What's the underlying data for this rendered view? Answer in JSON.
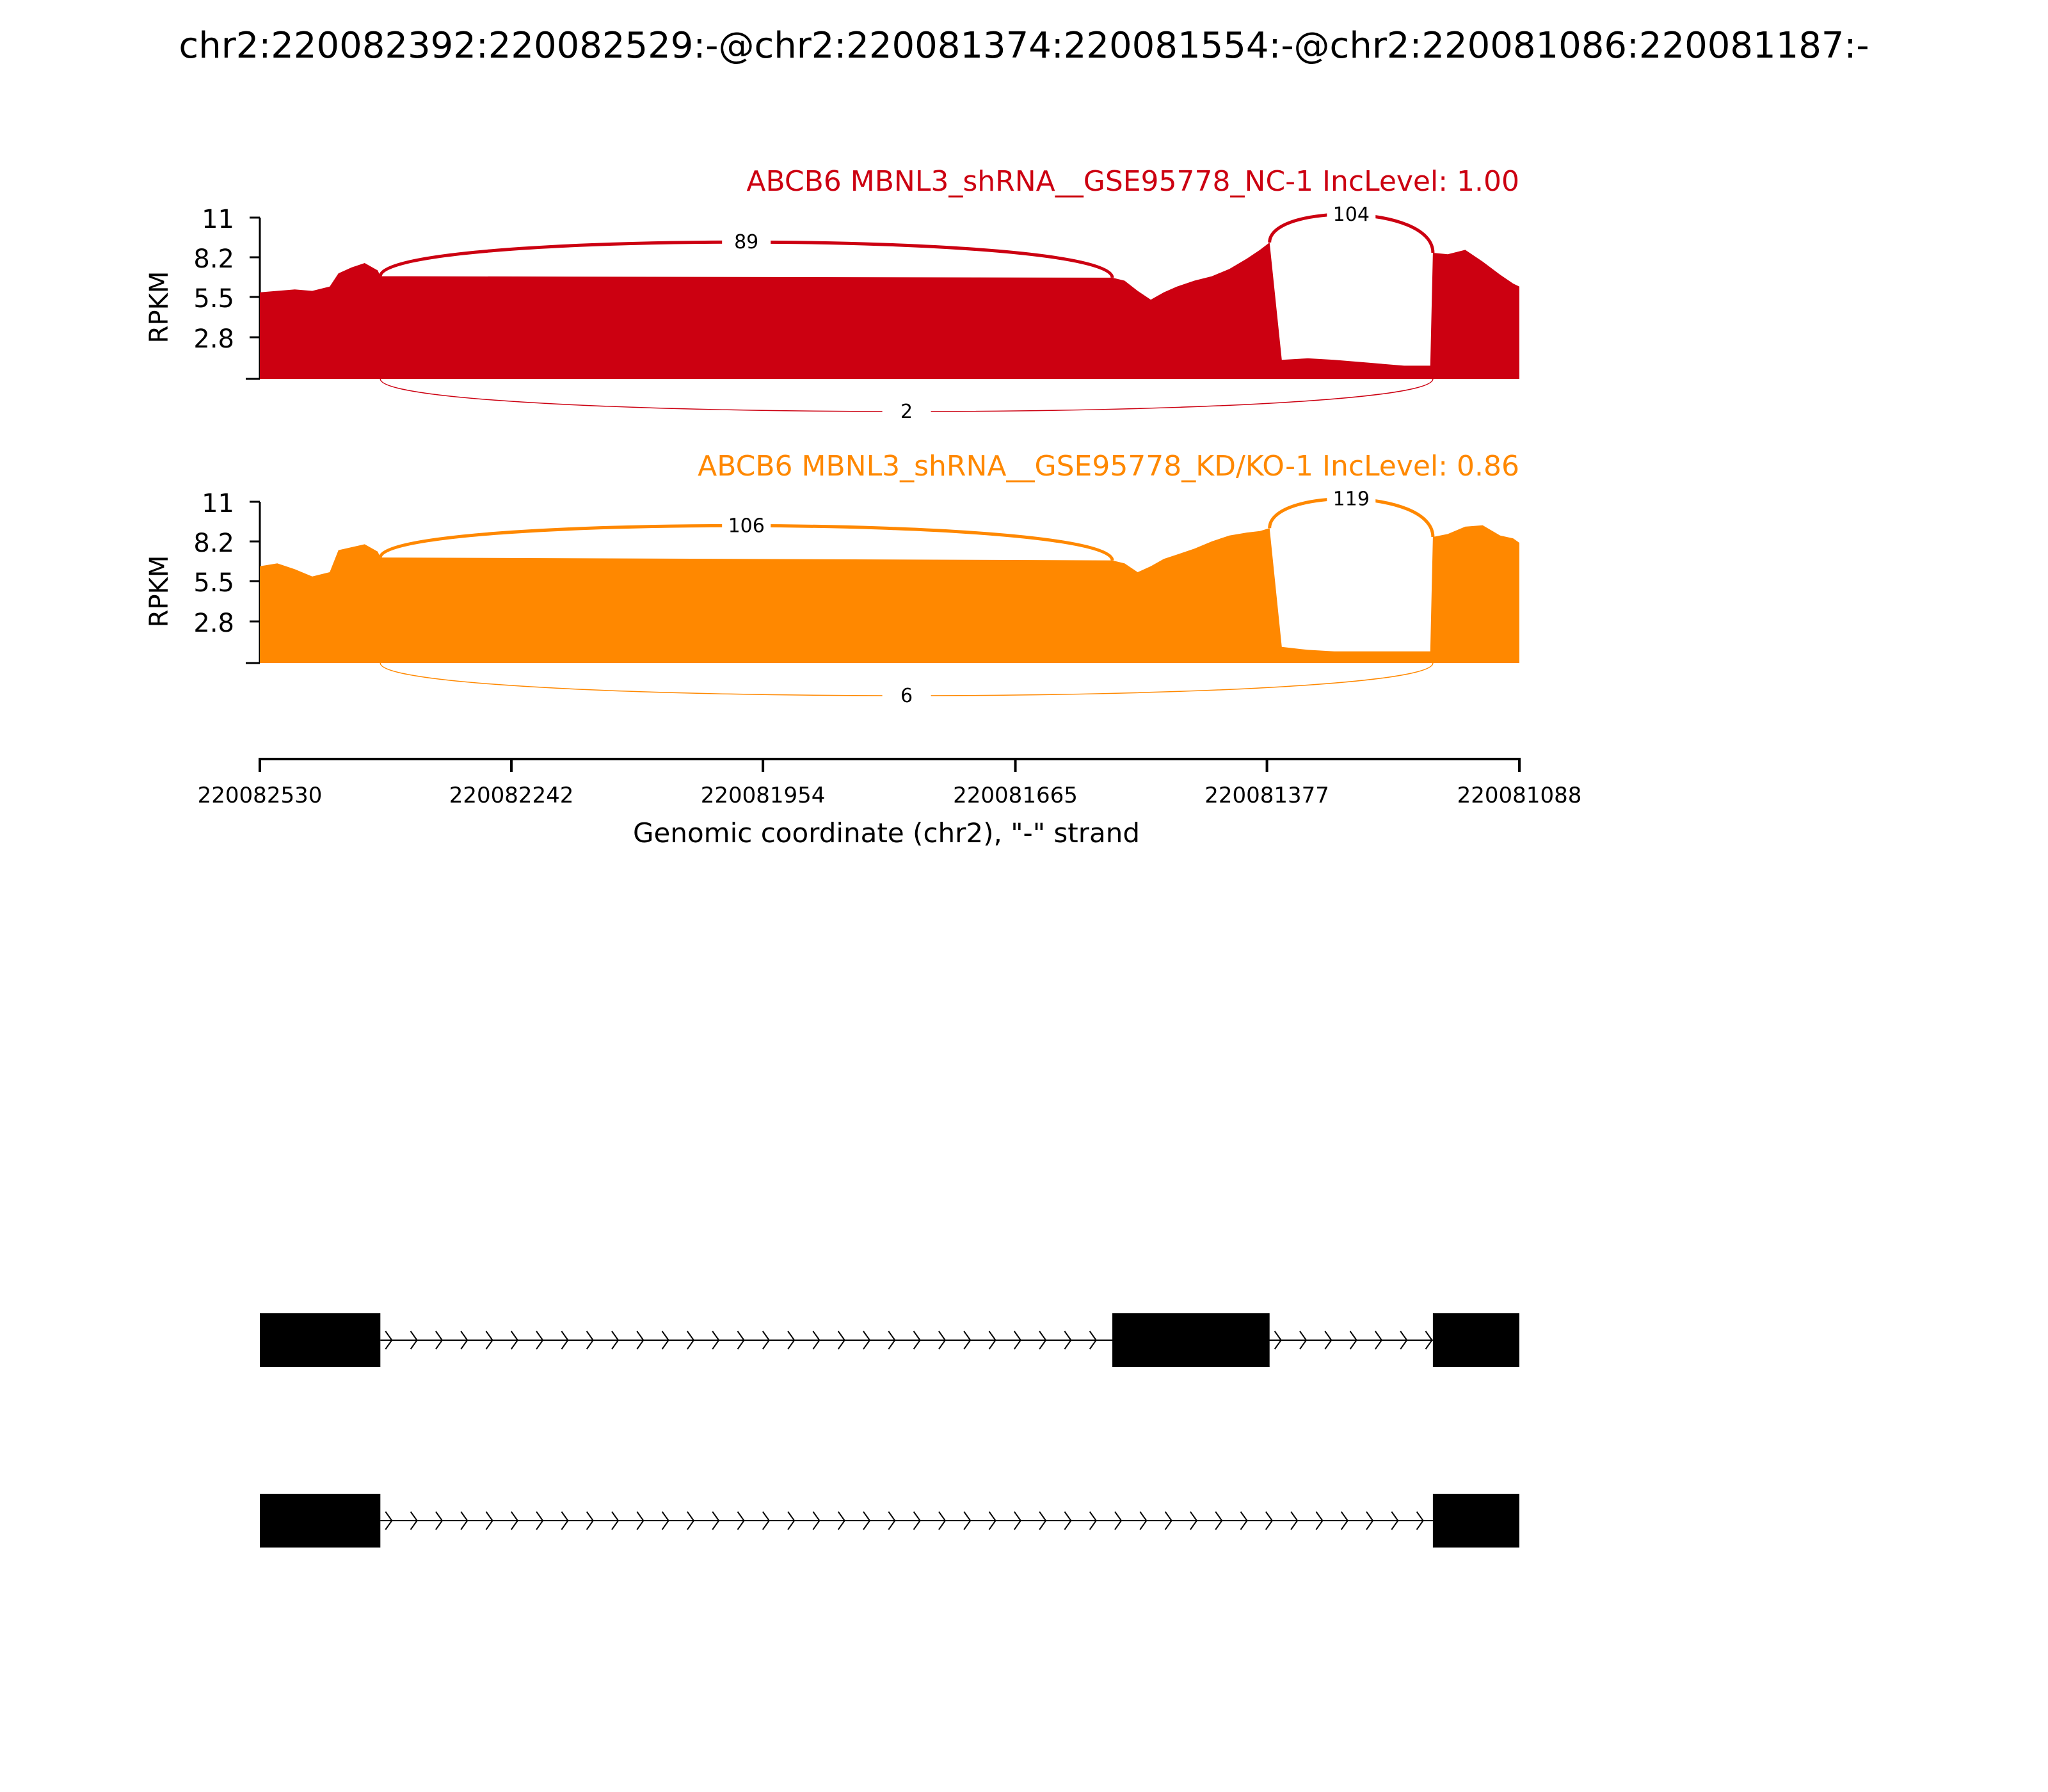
{
  "title": "chr2:220082392:220082529:-@chr2:220081374:220081554:-@chr2:220081086:220081187:-",
  "colors": {
    "nc": "#cc0011",
    "kd": "#ff8800",
    "axis": "#000000",
    "exon": "#000000"
  },
  "chart_data": {
    "type": "area",
    "description_type": "sashimi",
    "x_axis": {
      "label": "Genomic coordinate (chr2), \"-\" strand",
      "range": [
        220082530,
        220081088
      ],
      "reversed": true,
      "ticks": [
        "220082530",
        "220082242",
        "220081954",
        "220081665",
        "220081377",
        "220081088"
      ]
    },
    "y_axis": {
      "label": "RPKM",
      "ticks": [
        "11",
        "8.2",
        "5.5",
        "2.8"
      ],
      "range": [
        0,
        11
      ]
    },
    "exons": [
      {
        "start": 220082530,
        "end": 220082392
      },
      {
        "start": 220081554,
        "end": 220081374
      },
      {
        "start": 220081187,
        "end": 220081088
      }
    ],
    "tracks": [
      {
        "label": "ABCB6 MBNL3_shRNA__GSE95778_NC-1 IncLevel: 1.00",
        "color_key": "nc",
        "coverage": [
          [
            220082530,
            5.9
          ],
          [
            220082510,
            6.0
          ],
          [
            220082490,
            6.1
          ],
          [
            220082470,
            6.0
          ],
          [
            220082450,
            6.3
          ],
          [
            220082440,
            7.2
          ],
          [
            220082425,
            7.6
          ],
          [
            220082410,
            7.9
          ],
          [
            220082395,
            7.4
          ],
          [
            220082392,
            7.0
          ],
          [
            220081554,
            6.9
          ],
          [
            220081540,
            6.7
          ],
          [
            220081525,
            6.0
          ],
          [
            220081510,
            5.4
          ],
          [
            220081495,
            5.9
          ],
          [
            220081480,
            6.3
          ],
          [
            220081460,
            6.7
          ],
          [
            220081440,
            7.0
          ],
          [
            220081420,
            7.5
          ],
          [
            220081400,
            8.2
          ],
          [
            220081385,
            8.8
          ],
          [
            220081374,
            9.3
          ],
          [
            220081360,
            1.3
          ],
          [
            220081330,
            1.4
          ],
          [
            220081300,
            1.3
          ],
          [
            220081260,
            1.1
          ],
          [
            220081220,
            0.9
          ],
          [
            220081190,
            0.9
          ],
          [
            220081187,
            8.6
          ],
          [
            220081170,
            8.5
          ],
          [
            220081150,
            8.8
          ],
          [
            220081130,
            8.0
          ],
          [
            220081110,
            7.1
          ],
          [
            220081095,
            6.5
          ],
          [
            220081088,
            6.3
          ]
        ],
        "junctions": [
          {
            "from": 220082392,
            "to": 220081554,
            "reads": "89",
            "side": "top"
          },
          {
            "from": 220081374,
            "to": 220081187,
            "reads": "104",
            "side": "top"
          },
          {
            "from": 220082392,
            "to": 220081187,
            "reads": "2",
            "side": "bottom"
          }
        ]
      },
      {
        "label": "ABCB6 MBNL3_shRNA__GSE95778_KD/KO-1 IncLevel: 0.86",
        "color_key": "kd",
        "coverage": [
          [
            220082530,
            6.6
          ],
          [
            220082510,
            6.8
          ],
          [
            220082490,
            6.4
          ],
          [
            220082470,
            5.9
          ],
          [
            220082450,
            6.2
          ],
          [
            220082440,
            7.7
          ],
          [
            220082425,
            7.9
          ],
          [
            220082410,
            8.1
          ],
          [
            220082395,
            7.6
          ],
          [
            220082392,
            7.2
          ],
          [
            220081554,
            7.0
          ],
          [
            220081540,
            6.8
          ],
          [
            220081525,
            6.2
          ],
          [
            220081510,
            6.6
          ],
          [
            220081495,
            7.1
          ],
          [
            220081480,
            7.4
          ],
          [
            220081460,
            7.8
          ],
          [
            220081440,
            8.3
          ],
          [
            220081420,
            8.7
          ],
          [
            220081400,
            8.9
          ],
          [
            220081385,
            9.0
          ],
          [
            220081374,
            9.2
          ],
          [
            220081360,
            1.1
          ],
          [
            220081330,
            0.9
          ],
          [
            220081300,
            0.8
          ],
          [
            220081260,
            0.8
          ],
          [
            220081220,
            0.8
          ],
          [
            220081190,
            0.8
          ],
          [
            220081187,
            8.6
          ],
          [
            220081170,
            8.8
          ],
          [
            220081150,
            9.3
          ],
          [
            220081130,
            9.4
          ],
          [
            220081110,
            8.7
          ],
          [
            220081095,
            8.5
          ],
          [
            220081088,
            8.2
          ]
        ],
        "junctions": [
          {
            "from": 220082392,
            "to": 220081554,
            "reads": "106",
            "side": "top"
          },
          {
            "from": 220081374,
            "to": 220081187,
            "reads": "119",
            "side": "top"
          },
          {
            "from": 220082392,
            "to": 220081187,
            "reads": "6",
            "side": "bottom"
          }
        ]
      }
    ],
    "isoforms": [
      {
        "exons": [
          [
            220082530,
            220082392
          ],
          [
            220081554,
            220081374
          ],
          [
            220081187,
            220081088
          ]
        ]
      },
      {
        "exons": [
          [
            220082530,
            220082392
          ],
          [
            220081187,
            220081088
          ]
        ]
      }
    ]
  }
}
